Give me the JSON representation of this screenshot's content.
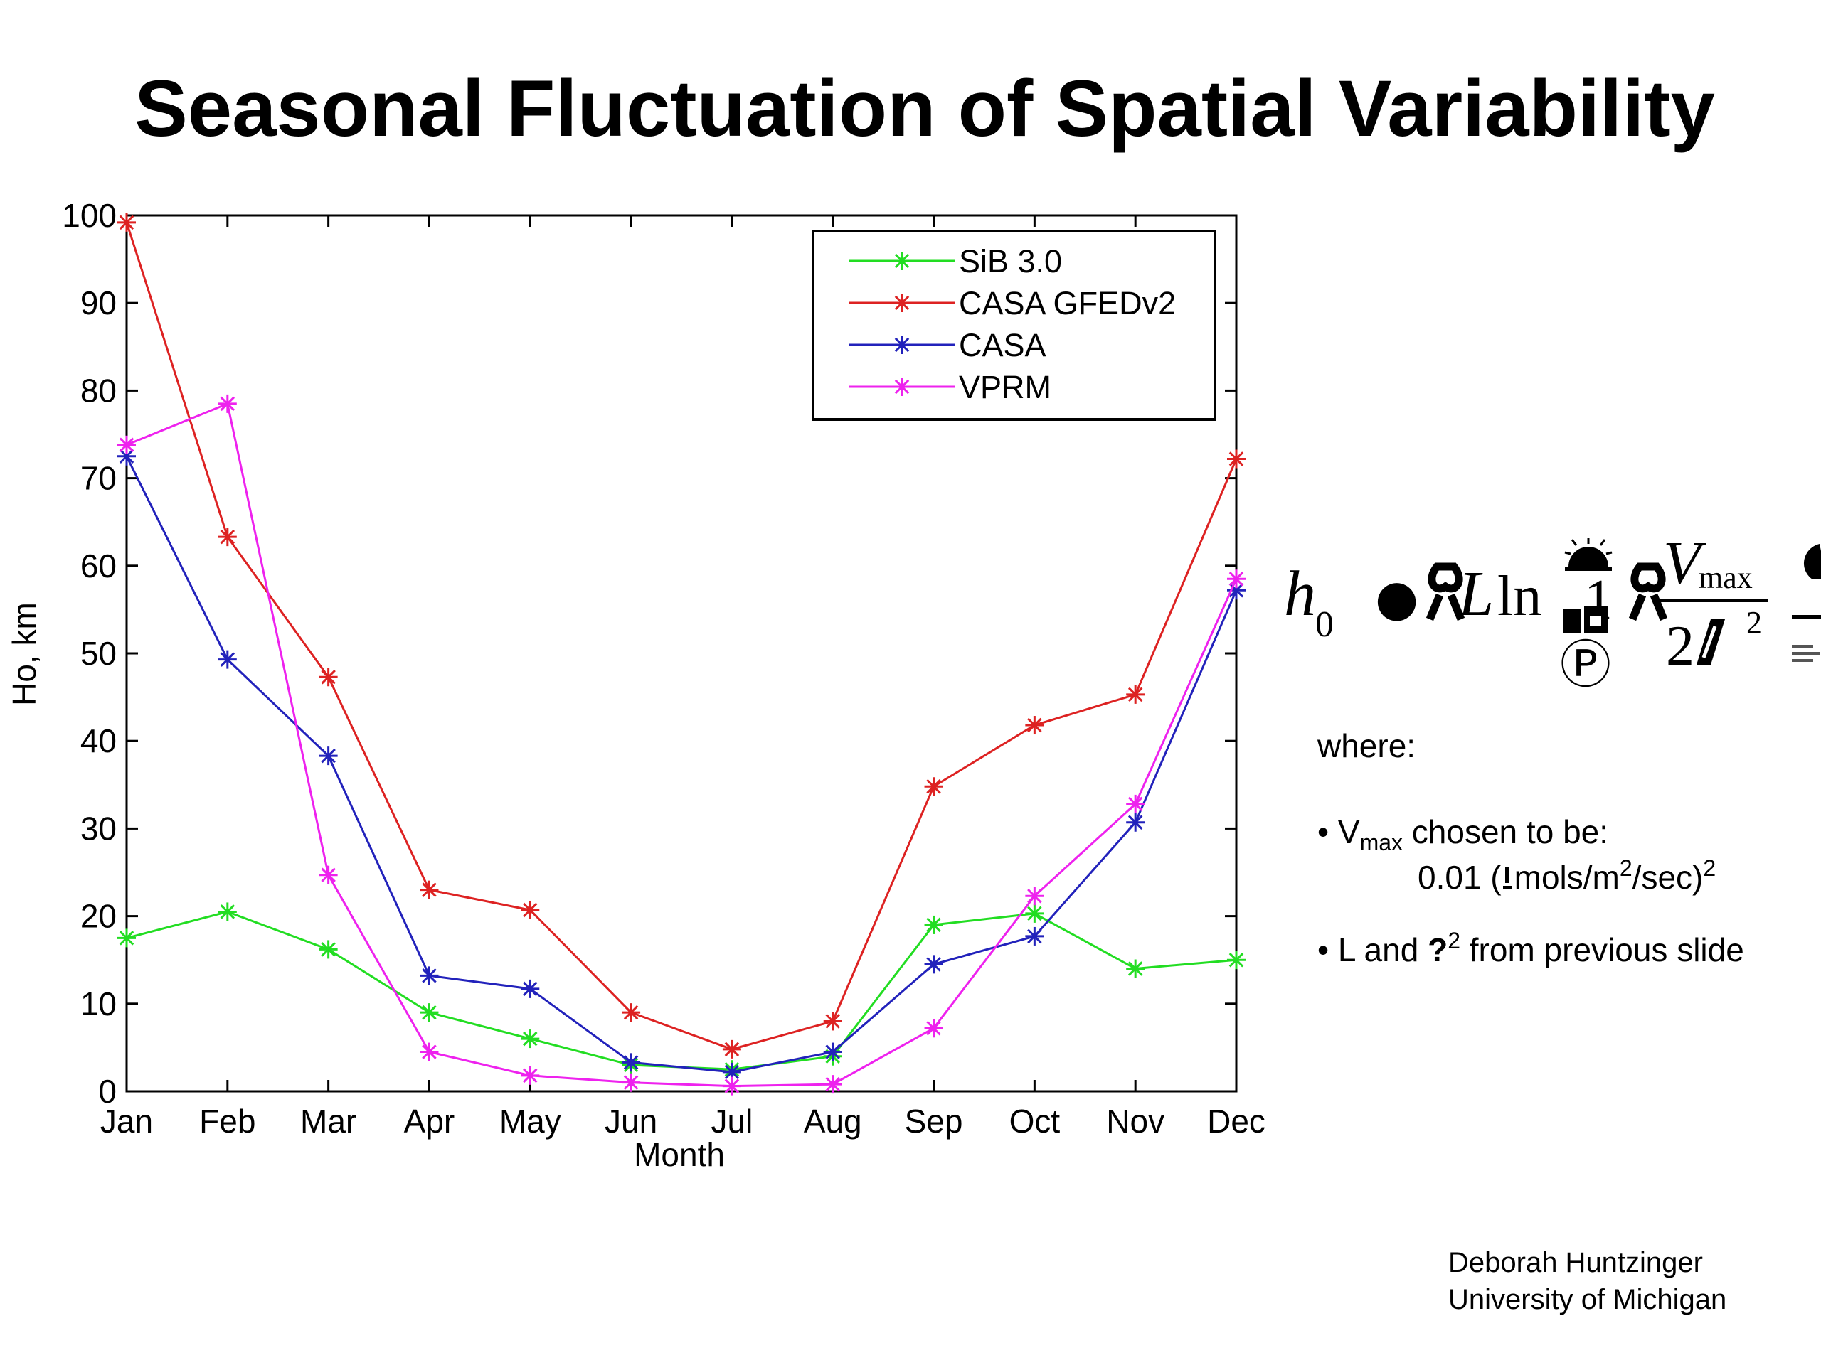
{
  "slide": {
    "title": "Seasonal Fluctuation of Spatial Variability",
    "where_label": "where:",
    "bullet_vmax": {
      "bullet": "•",
      "v": "V",
      "sub": "max",
      "text": " chosen to be:",
      "value_pre": "0.01 (",
      "value_glyph": "",
      "value_mid": "mols/m",
      "value_sup1": "2",
      "value_post": "/sec)",
      "value_sup2": "2"
    },
    "bullet_l": {
      "bullet": "•",
      "text_pre": "L and ",
      "glyph": "?",
      "sup": "2",
      "text_post": " from previous slide"
    },
    "credit_name": "Deborah Huntzinger",
    "credit_org": "University of Michigan",
    "formula": {
      "h": "h",
      "h_sub": "0",
      "bullet": "●",
      "L": "L",
      "ln": "ln",
      "one": "1",
      "circled_p": "Ⓟ",
      "V": "V",
      "V_sub": "max",
      "two": "2",
      "exp2": "2"
    }
  },
  "chart_data": {
    "type": "line",
    "title": "",
    "xlabel": "Month",
    "ylabel": "Ho, km",
    "categories": [
      "Jan",
      "Feb",
      "Mar",
      "Apr",
      "May",
      "Jun",
      "Jul",
      "Aug",
      "Sep",
      "Oct",
      "Nov",
      "Dec"
    ],
    "ylim": [
      0,
      100
    ],
    "yticks": [
      0,
      10,
      20,
      30,
      40,
      50,
      60,
      70,
      80,
      90,
      100
    ],
    "grid": false,
    "legend_position": "top-right",
    "marker": "asterisk",
    "series": [
      {
        "name": "SiB 3.0",
        "color": "#22dd22",
        "values": [
          17.5,
          20.5,
          16.2,
          9.0,
          6.0,
          3.0,
          2.5,
          4.0,
          19.0,
          20.3,
          14.0,
          15.0
        ]
      },
      {
        "name": "CASA GFEDv2",
        "color": "#dd2222",
        "values": [
          99.2,
          63.3,
          47.3,
          23.0,
          20.7,
          9.0,
          4.8,
          8.0,
          34.8,
          41.8,
          45.3,
          72.2
        ]
      },
      {
        "name": "CASA",
        "color": "#2222bb",
        "values": [
          72.5,
          49.3,
          38.3,
          13.2,
          11.7,
          3.3,
          2.2,
          4.5,
          14.5,
          17.7,
          30.7,
          57.2
        ]
      },
      {
        "name": "VPRM",
        "color": "#ee22ee",
        "values": [
          73.8,
          78.5,
          24.7,
          4.5,
          1.8,
          1.0,
          0.6,
          0.8,
          7.2,
          22.3,
          32.8,
          58.5
        ]
      }
    ]
  }
}
